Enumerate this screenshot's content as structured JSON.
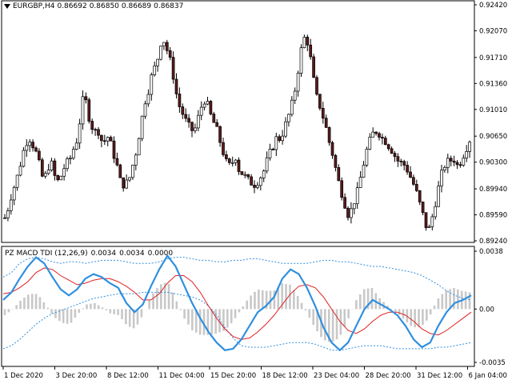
{
  "price_pane": {
    "symbol": "EURGBP,H4",
    "open": "0.86692",
    "high": "0.86850",
    "low": "0.86689",
    "close": "0.86837",
    "y_range": [
      0.8924,
      0.9242
    ],
    "y_ticks": [
      "0.92420",
      "0.92070",
      "0.91710",
      "0.91360",
      "0.91010",
      "0.90650",
      "0.90300",
      "0.89940",
      "0.89590",
      "0.89240"
    ],
    "colors": {
      "bull": "#000000",
      "bear_body": "#5a1a1a",
      "bull_body": "#ffffff"
    }
  },
  "macd_pane": {
    "name": "PZ MACD TDI (12,26,9)",
    "value1": "0.0034",
    "value2": "0.0034",
    "value3": "0.0000",
    "y_range": [
      -0.0035,
      0.0038
    ],
    "y_ticks": [
      "0.0038",
      "0.00",
      "-0.0035"
    ],
    "colors": {
      "macd": "#2f8fdf",
      "signal": "#e02020",
      "bands": "#2f8fdf",
      "histogram": "#c8c8c8"
    }
  },
  "time_axis": {
    "labels": [
      "1 Dec 2020",
      "3 Dec 20:00",
      "8 Dec 12:00",
      "11 Dec 04:00",
      "15 Dec 20:00",
      "18 Dec 12:00",
      "23 Dec 04:00",
      "28 Dec 20:00",
      "31 Dec 12:00",
      "6 Jan 04:00"
    ]
  },
  "chart_data": [
    {
      "type": "candlestick",
      "title": "EURGBP,H4",
      "ylim": [
        0.8924,
        0.9242
      ],
      "close_path": [
        0.8955,
        0.8968,
        0.8985,
        0.8998,
        0.9012,
        0.903,
        0.9048,
        0.906,
        0.9062,
        0.905,
        0.904,
        0.9022,
        0.9005,
        0.9015,
        0.903,
        0.9025,
        0.9,
        0.9008,
        0.9015,
        0.903,
        0.9028,
        0.9045,
        0.9052,
        0.907,
        0.911,
        0.9118,
        0.9095,
        0.908,
        0.907,
        0.9075,
        0.906,
        0.9058,
        0.9065,
        0.9055,
        0.904,
        0.9025,
        0.9005,
        0.9,
        0.9002,
        0.901,
        0.9028,
        0.9045,
        0.907,
        0.9095,
        0.9118,
        0.913,
        0.915,
        0.916,
        0.9175,
        0.92,
        0.919,
        0.9175,
        0.916,
        0.9135,
        0.911,
        0.91,
        0.909,
        0.908,
        0.9075,
        0.907,
        0.9085,
        0.91,
        0.9115,
        0.911,
        0.9095,
        0.9085,
        0.9075,
        0.906,
        0.9045,
        0.903,
        0.9025,
        0.903,
        0.9038,
        0.902,
        0.9015,
        0.901,
        0.9005,
        0.9002,
        0.9,
        0.9005,
        0.9012,
        0.902,
        0.9035,
        0.9045,
        0.9055,
        0.9065,
        0.906,
        0.9075,
        0.9085,
        0.91,
        0.9115,
        0.914,
        0.917,
        0.9195,
        0.92,
        0.918,
        0.915,
        0.912,
        0.911,
        0.9095,
        0.908,
        0.906,
        0.9045,
        0.9025,
        0.9005,
        0.899,
        0.8975,
        0.896,
        0.8965,
        0.8978,
        0.899,
        0.901,
        0.903,
        0.9048,
        0.906,
        0.907,
        0.9072,
        0.9068,
        0.906,
        0.9058,
        0.905,
        0.9045,
        0.9035,
        0.903,
        0.9028,
        0.9025,
        0.9015,
        0.9005,
        0.8995,
        0.898,
        0.8965,
        0.895,
        0.8935,
        0.895,
        0.897,
        0.899,
        0.901,
        0.9025,
        0.903,
        0.9032,
        0.9035,
        0.9025,
        0.903,
        0.904,
        0.905,
        0.906
      ]
    },
    {
      "type": "line",
      "title": "PZ MACD TDI (12,26,9)",
      "ylim": [
        -0.0035,
        0.0038
      ],
      "series": [
        {
          "name": "macd",
          "values": [
            0.0006,
            0.0011,
            0.002,
            0.0028,
            0.0034,
            0.003,
            0.0021,
            0.0013,
            0.0009,
            0.0013,
            0.002,
            0.0023,
            0.0021,
            0.0017,
            0.0014,
            0.0004,
            -0.0002,
            0.0003,
            0.0015,
            0.0026,
            0.0035,
            0.0028,
            0.0016,
            0.0004,
            -0.0006,
            -0.0015,
            -0.0022,
            -0.0027,
            -0.0026,
            -0.002,
            -0.0011,
            -0.0002,
            0.0002,
            0.0008,
            0.002,
            0.0026,
            0.0023,
            0.0014,
            0.0002,
            -0.0012,
            -0.0022,
            -0.0027,
            -0.0022,
            -0.0011,
            0.0,
            0.0006,
            0.0003,
            0.0,
            -0.0004,
            -0.0011,
            -0.002,
            -0.0025,
            -0.0022,
            -0.0011,
            -0.0002,
            0.0004,
            0.0006,
            0.0009
          ]
        },
        {
          "name": "signal",
          "values": [
            0.001,
            0.0011,
            0.0014,
            0.0018,
            0.0024,
            0.0027,
            0.0026,
            0.0022,
            0.0019,
            0.0016,
            0.0017,
            0.0019,
            0.002,
            0.002,
            0.0018,
            0.0015,
            0.0011,
            0.0006,
            0.0006,
            0.001,
            0.0017,
            0.0022,
            0.0022,
            0.0018,
            0.0011,
            0.0002,
            -0.0006,
            -0.0013,
            -0.0018,
            -0.002,
            -0.0019,
            -0.0015,
            -0.001,
            -0.0004,
            0.0003,
            0.001,
            0.0015,
            0.0016,
            0.0014,
            0.0008,
            0.0,
            -0.0008,
            -0.0014,
            -0.0016,
            -0.0013,
            -0.0008,
            -0.0004,
            -0.0002,
            -0.0002,
            -0.0004,
            -0.0008,
            -0.0013,
            -0.0016,
            -0.0017,
            -0.0014,
            -0.001,
            -0.0006,
            -0.0002
          ]
        },
        {
          "name": "upper_band",
          "values": [
            0.0021,
            0.0024,
            0.003,
            0.0033,
            0.0034,
            0.0033,
            0.0031,
            0.003,
            0.0031,
            0.0031,
            0.003,
            0.0031,
            0.0032,
            0.0032,
            0.0032,
            0.0031,
            0.003,
            0.003,
            0.003,
            0.0031,
            0.0033,
            0.0034,
            0.0034,
            0.0033,
            0.0032,
            0.0032,
            0.0031,
            0.0031,
            0.0032,
            0.0032,
            0.0033,
            0.0033,
            0.0032,
            0.0031,
            0.003,
            0.003,
            0.003,
            0.003,
            0.0031,
            0.0032,
            0.0032,
            0.0031,
            0.0031,
            0.003,
            0.0029,
            0.0028,
            0.0028,
            0.0027,
            0.0026,
            0.0025,
            0.0024,
            0.0022,
            0.0019,
            0.0016,
            0.0012,
            0.0009,
            0.0007,
            0.0006
          ]
        },
        {
          "name": "lower_band",
          "values": [
            -0.0026,
            -0.0024,
            -0.002,
            -0.0015,
            -0.001,
            -0.0006,
            -0.0003,
            -0.0001,
            0.0001,
            0.0003,
            0.0005,
            0.0007,
            0.0008,
            0.0009,
            0.001,
            0.001,
            0.001,
            0.0011,
            0.0011,
            0.0011,
            0.0011,
            0.001,
            0.0009,
            0.0008,
            0.0006,
            0.0002,
            -0.0004,
            -0.0012,
            -0.0019,
            -0.0024,
            -0.0025,
            -0.0025,
            -0.0025,
            -0.0024,
            -0.0023,
            -0.0022,
            -0.0022,
            -0.0022,
            -0.0023,
            -0.0025,
            -0.0027,
            -0.0027,
            -0.0026,
            -0.0025,
            -0.0024,
            -0.0024,
            -0.0024,
            -0.0025,
            -0.0026,
            -0.0026,
            -0.0026,
            -0.0026,
            -0.0026,
            -0.0025,
            -0.0025,
            -0.0024,
            -0.0023,
            -0.0022
          ]
        },
        {
          "name": "histogram",
          "values": [
            -0.0004,
            0.0,
            0.0006,
            0.001,
            0.001,
            0.0003,
            -0.0005,
            -0.0009,
            -0.001,
            -0.0003,
            0.0003,
            0.0004,
            0.0001,
            -0.0003,
            -0.0004,
            -0.0011,
            -0.0013,
            -0.0003,
            0.0009,
            0.0016,
            0.0018,
            0.0006,
            -0.0006,
            -0.0014,
            -0.0017,
            -0.0017,
            -0.0016,
            -0.0014,
            -0.0008,
            0.0,
            0.0008,
            0.0013,
            0.0012,
            0.0012,
            0.0017,
            0.0016,
            0.0008,
            -0.0002,
            -0.0012,
            -0.002,
            -0.0022,
            -0.0019,
            -0.0008,
            0.0005,
            0.0013,
            0.0014,
            0.0007,
            0.0002,
            -0.0002,
            -0.0007,
            -0.0012,
            -0.0012,
            -0.0006,
            0.0006,
            0.0012,
            0.0014,
            0.0012,
            0.0011
          ]
        }
      ]
    }
  ]
}
